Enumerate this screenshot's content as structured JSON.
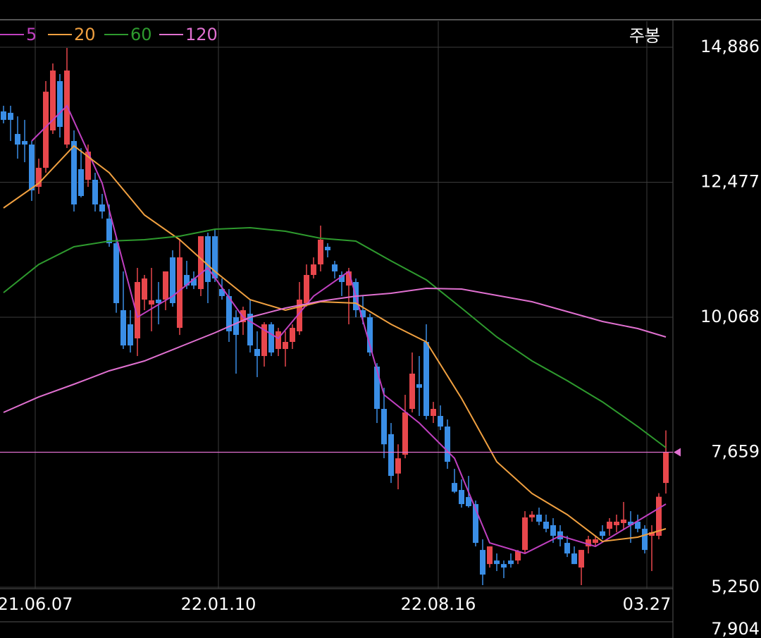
{
  "chart_data": {
    "type": "candlestick",
    "period_label": "주봉",
    "up_color": "#e8474c",
    "down_color": "#3a8ee6",
    "xlim": [
      -0.5,
      95.0
    ],
    "xticks": [
      {
        "value": 4.5,
        "label": "21.06.07"
      },
      {
        "value": 30.5,
        "label": "22.01.10"
      },
      {
        "value": 61.7,
        "label": "22.08.16"
      },
      {
        "value": 91.3,
        "label": "03.27"
      }
    ],
    "ylim": [
      5225,
      15352
    ],
    "yticks": [
      {
        "value": 14886,
        "label": "14,886"
      },
      {
        "value": 12477,
        "label": "12,477"
      },
      {
        "value": 10068,
        "label": "10,068"
      },
      {
        "value": 7659,
        "label": "7,659"
      },
      {
        "value": 5250,
        "label": "5,250"
      }
    ],
    "grid": true,
    "last_price": 7659,
    "last_price_color": "#e070d0",
    "volume_axis_label": "7,904",
    "ohlc": [
      [
        13741,
        13842,
        13528,
        13590
      ],
      [
        13716,
        13842,
        13213,
        13590
      ],
      [
        13339,
        13653,
        12898,
        13150
      ],
      [
        13213,
        13590,
        12835,
        13150
      ],
      [
        13150,
        13213,
        12144,
        12332
      ],
      [
        12395,
        12898,
        12270,
        12735
      ],
      [
        12735,
        14282,
        12647,
        14093
      ],
      [
        13402,
        14597,
        13339,
        14471
      ],
      [
        14282,
        14408,
        13276,
        13465
      ],
      [
        13150,
        14874,
        13087,
        14471
      ],
      [
        13213,
        13402,
        11955,
        12081
      ],
      [
        12710,
        13087,
        12207,
        12232
      ],
      [
        12521,
        13150,
        12395,
        13024
      ],
      [
        12521,
        12647,
        11955,
        12081
      ],
      [
        12081,
        12270,
        11829,
        11955
      ],
      [
        11829,
        12081,
        11326,
        11389
      ],
      [
        11389,
        11514,
        10148,
        10320
      ],
      [
        10194,
        10886,
        9502,
        9565
      ],
      [
        9942,
        10194,
        9439,
        9565
      ],
      [
        9691,
        10949,
        9376,
        10697
      ],
      [
        10383,
        10823,
        10194,
        10760
      ],
      [
        10295,
        10949,
        9817,
        10370
      ],
      [
        10383,
        10697,
        9942,
        10320
      ],
      [
        10383,
        10886,
        10194,
        10886
      ],
      [
        11137,
        11263,
        10257,
        10320
      ],
      [
        9879,
        11452,
        9753,
        11137
      ],
      [
        10823,
        11075,
        10571,
        10634
      ],
      [
        10760,
        10886,
        10571,
        10634
      ],
      [
        10571,
        11514,
        10446,
        11514
      ],
      [
        11514,
        11577,
        10320,
        10697
      ],
      [
        11514,
        11640,
        10697,
        10760
      ],
      [
        10571,
        10760,
        10383,
        10446
      ],
      [
        10446,
        10571,
        9628,
        9817
      ],
      [
        10068,
        10194,
        9062,
        9753
      ],
      [
        9980,
        10257,
        9753,
        10194
      ],
      [
        10131,
        10383,
        9439,
        9565
      ],
      [
        9502,
        9817,
        9000,
        9376
      ],
      [
        9376,
        9980,
        9188,
        9942
      ],
      [
        9942,
        9980,
        9376,
        9439
      ],
      [
        9502,
        9879,
        9376,
        9817
      ],
      [
        9502,
        9817,
        9188,
        9628
      ],
      [
        9628,
        9942,
        9502,
        9879
      ],
      [
        9817,
        10697,
        9753,
        10383
      ],
      [
        10320,
        11011,
        10257,
        10823
      ],
      [
        10823,
        11137,
        10760,
        11011
      ],
      [
        11011,
        11703,
        10886,
        11452
      ],
      [
        11326,
        11389,
        11137,
        11263
      ],
      [
        11011,
        11075,
        10760,
        10886
      ],
      [
        10823,
        10886,
        10446,
        10697
      ],
      [
        10634,
        10949,
        9942,
        10886
      ],
      [
        10697,
        10760,
        10068,
        10194
      ],
      [
        10194,
        10446,
        9942,
        10068
      ],
      [
        10068,
        10131,
        9376,
        9439
      ],
      [
        9188,
        9250,
        8181,
        8433
      ],
      [
        8433,
        8810,
        7553,
        7801
      ],
      [
        7982,
        8181,
        7111,
        7237
      ],
      [
        7279,
        7801,
        6998,
        7551
      ],
      [
        7615,
        8684,
        7551,
        8370
      ],
      [
        8433,
        9439,
        8370,
        9062
      ],
      [
        8873,
        9376,
        8307,
        8810
      ],
      [
        9628,
        9942,
        8244,
        8307
      ],
      [
        8307,
        8558,
        8181,
        8433
      ],
      [
        8307,
        8495,
        8055,
        8118
      ],
      [
        8118,
        8244,
        7363,
        7489
      ],
      [
        7111,
        7363,
        6930,
        6955
      ],
      [
        6986,
        7175,
        6671,
        6734
      ],
      [
        6860,
        7237,
        6671,
        6697
      ],
      [
        6734,
        6797,
        5979,
        6042
      ],
      [
        5916,
        6105,
        5288,
        5476
      ],
      [
        5664,
        5979,
        5601,
        5979
      ],
      [
        5727,
        5853,
        5539,
        5664
      ],
      [
        5664,
        5727,
        5413,
        5602
      ],
      [
        5727,
        5853,
        5601,
        5664
      ],
      [
        5727,
        5916,
        5664,
        5891
      ],
      [
        5916,
        6608,
        5853,
        6496
      ],
      [
        6496,
        6608,
        6420,
        6546
      ],
      [
        6546,
        6671,
        6357,
        6420
      ],
      [
        6420,
        6546,
        6231,
        6293
      ],
      [
        6357,
        6483,
        6042,
        6168
      ],
      [
        6248,
        6357,
        5979,
        6105
      ],
      [
        6042,
        6168,
        5790,
        5853
      ],
      [
        5853,
        5979,
        5664,
        5664
      ],
      [
        5602,
        5916,
        5288,
        5916
      ],
      [
        5979,
        6168,
        5853,
        6105
      ],
      [
        6042,
        6168,
        5979,
        6105
      ],
      [
        6248,
        6357,
        6105,
        6168
      ],
      [
        6293,
        6483,
        6168,
        6420
      ],
      [
        6357,
        6546,
        6231,
        6420
      ],
      [
        6395,
        6772,
        6269,
        6458
      ],
      [
        6420,
        6608,
        6042,
        6357
      ],
      [
        6420,
        6546,
        6231,
        6293
      ],
      [
        6293,
        6357,
        5853,
        5916
      ],
      [
        6168,
        6357,
        5539,
        6231
      ],
      [
        6168,
        6929,
        6105,
        6865
      ],
      [
        7111,
        8049,
        6922,
        7659
      ]
    ],
    "series": [
      {
        "name": "5",
        "color": "#c040c0",
        "x": [
          4,
          9,
          14,
          19,
          24,
          29,
          34,
          39,
          44,
          49,
          54,
          59,
          64,
          69,
          74,
          79,
          84,
          89,
          94
        ],
        "values": [
          13213,
          13842,
          12458,
          10068,
          10445,
          10949,
          10068,
          9691,
          10445,
          10886,
          8684,
          8181,
          7552,
          6042,
          5854,
          6168,
          5979,
          6357,
          6734
        ]
      },
      {
        "name": "20",
        "color": "#f0a040",
        "x": [
          0,
          5,
          10,
          15,
          20,
          25,
          30,
          35,
          40,
          45,
          50,
          55,
          60,
          65,
          70,
          75,
          80,
          85,
          90,
          94
        ],
        "values": [
          12018,
          12458,
          13125,
          12647,
          11892,
          11452,
          10886,
          10382,
          10194,
          10345,
          10320,
          9942,
          9628,
          8621,
          7489,
          6923,
          6546,
          6068,
          6143,
          6294
        ]
      },
      {
        "name": "60",
        "color": "#2e9a2e",
        "x": [
          0,
          5,
          10,
          15,
          20,
          25,
          30,
          35,
          40,
          45,
          50,
          55,
          60,
          65,
          70,
          75,
          80,
          85,
          90,
          94
        ],
        "values": [
          10508,
          11011,
          11326,
          11427,
          11452,
          11515,
          11640,
          11666,
          11603,
          11477,
          11427,
          11074,
          10735,
          10232,
          9716,
          9288,
          8936,
          8558,
          8118,
          7741
        ]
      },
      {
        "name": "120",
        "color": "#e070d0",
        "x": [
          0,
          5,
          10,
          15,
          20,
          25,
          30,
          35,
          40,
          45,
          50,
          55,
          60,
          65,
          70,
          75,
          80,
          85,
          90,
          94
        ],
        "values": [
          8370,
          8646,
          8873,
          9112,
          9288,
          9540,
          9791,
          10068,
          10232,
          10357,
          10445,
          10496,
          10584,
          10571,
          10458,
          10345,
          10169,
          9993,
          9867,
          9716
        ]
      }
    ]
  }
}
